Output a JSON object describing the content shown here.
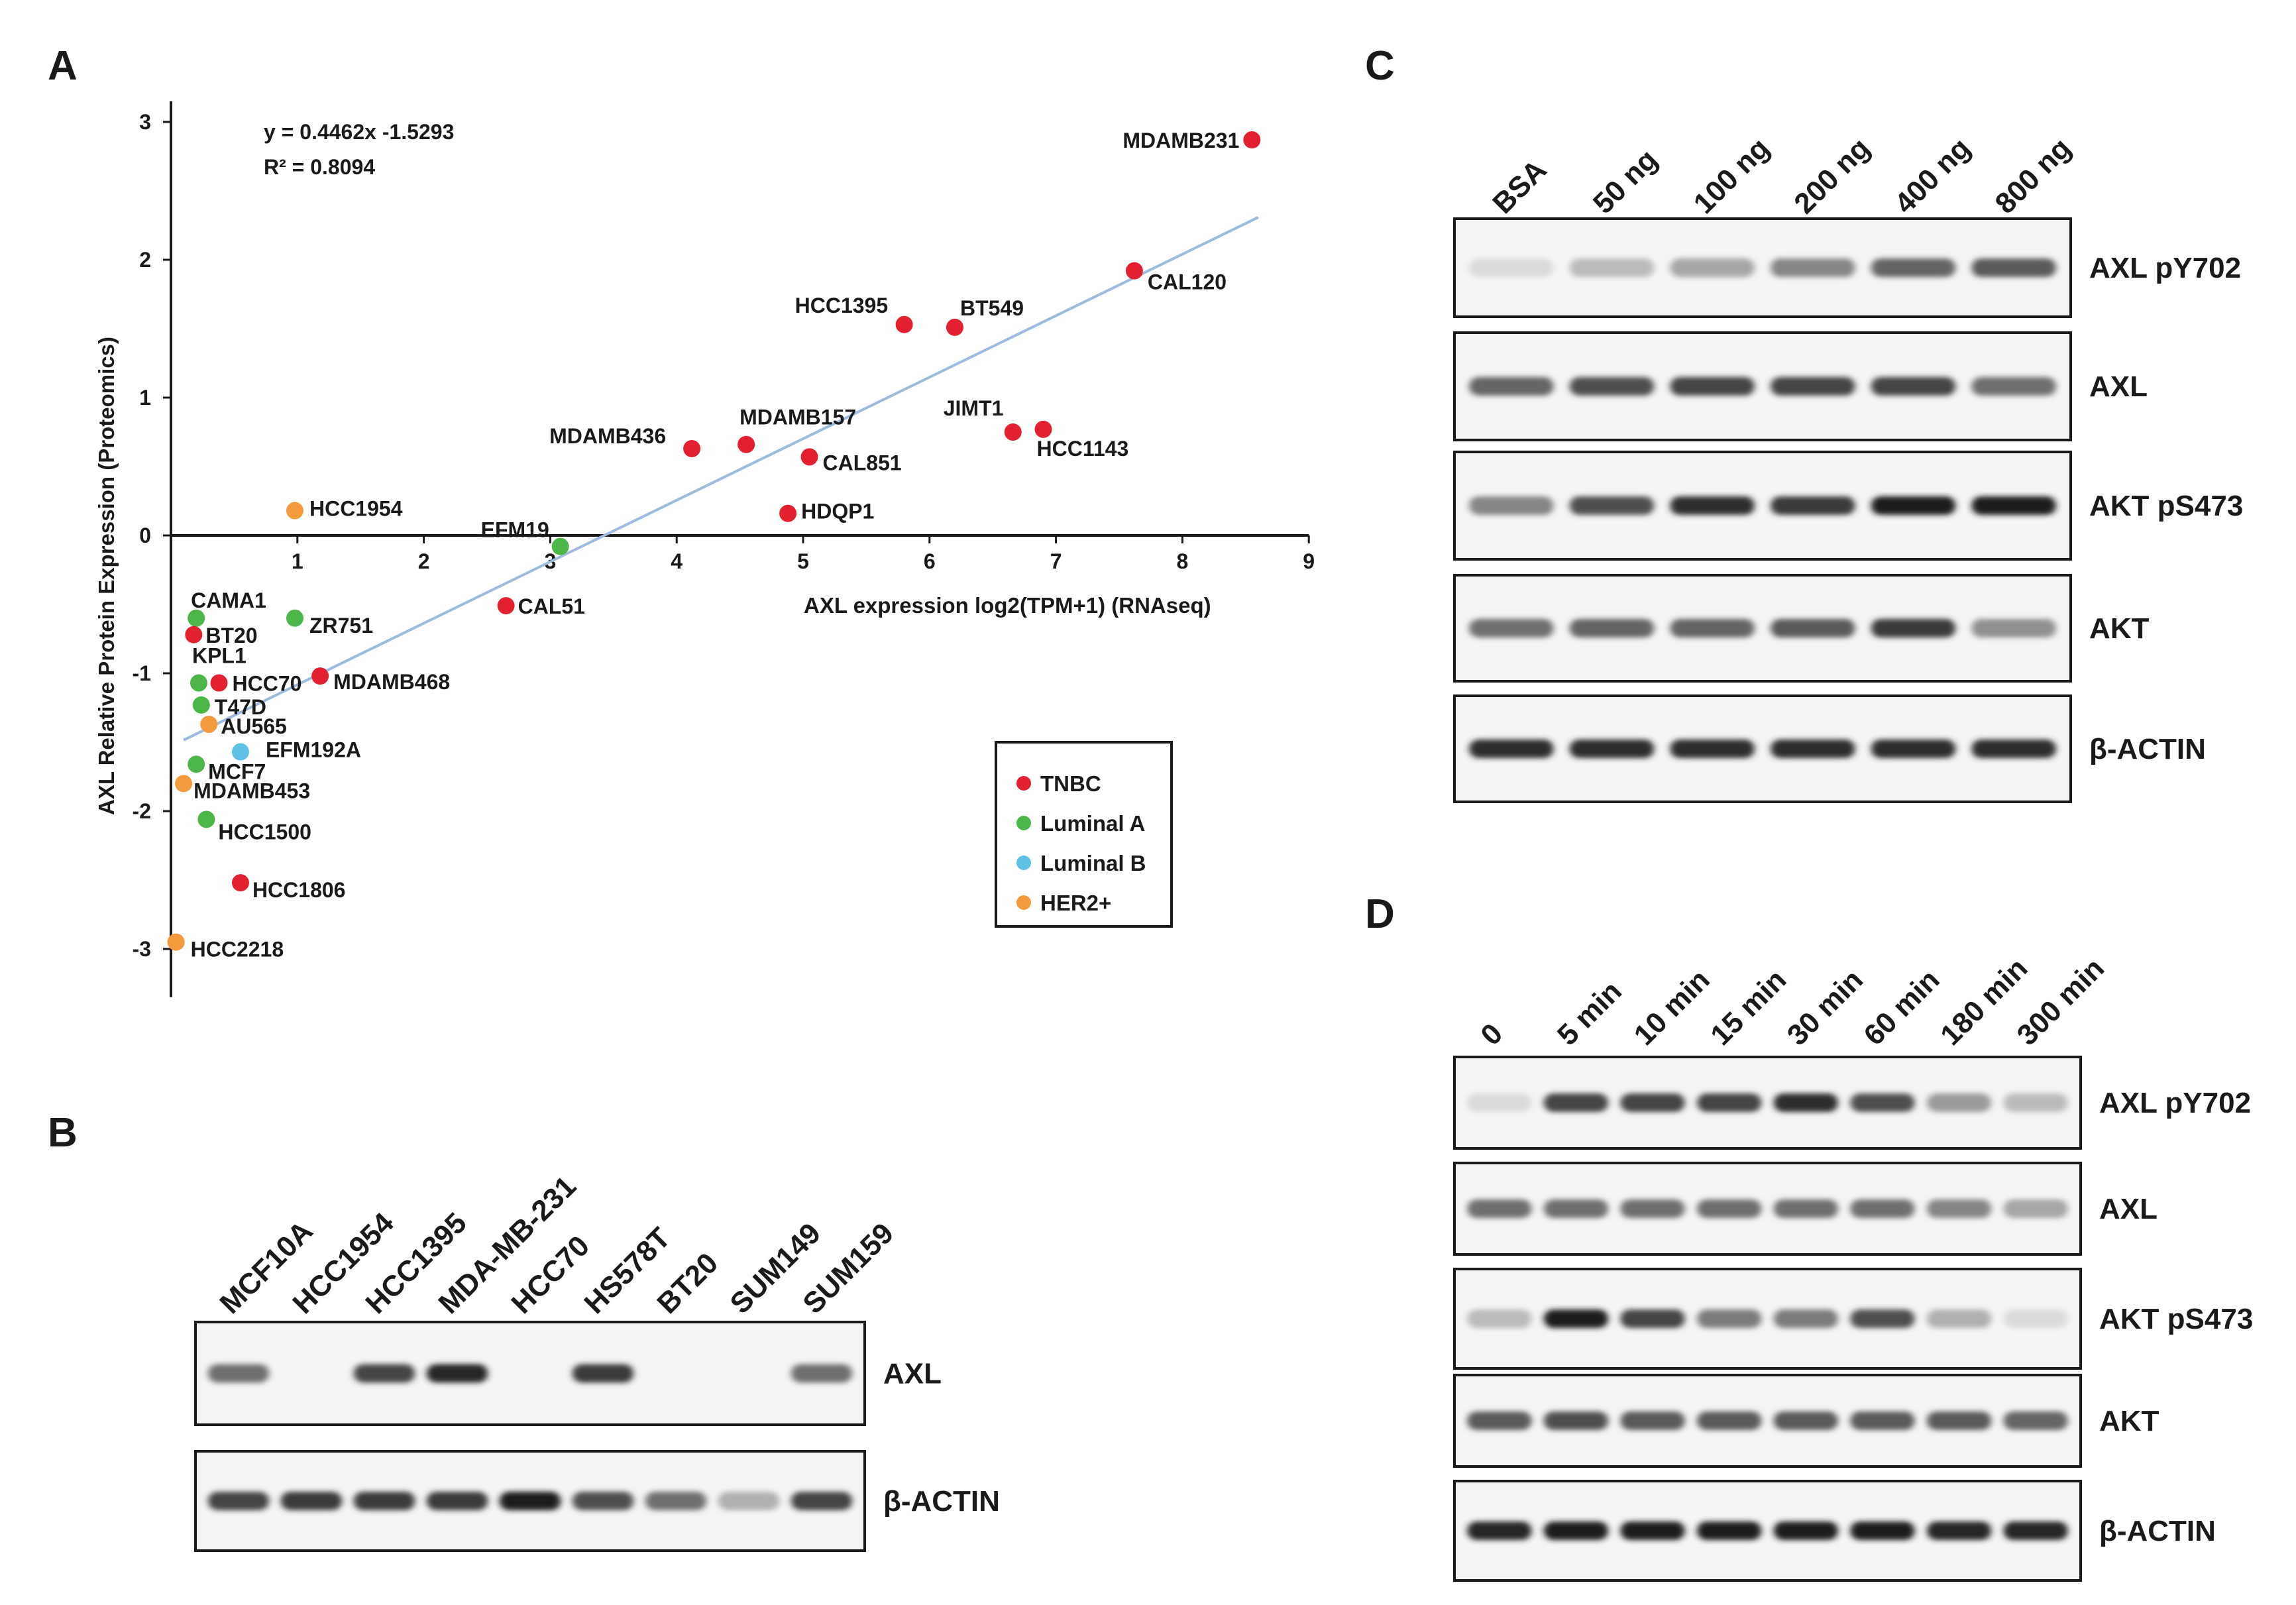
{
  "panels": {
    "a": "A",
    "b": "B",
    "c": "C",
    "d": "D"
  },
  "chart_data": {
    "type": "scatter",
    "xlabel": "AXL expression log2(TPM+1) (RNAseq)",
    "ylabel": "AXL Relative Protein Expression (Proteomics)",
    "xlim": [
      0,
      9
    ],
    "ylim": [
      -3,
      3
    ],
    "xticks": [
      "1",
      "2",
      "3",
      "4",
      "5",
      "6",
      "7",
      "8",
      "9"
    ],
    "yticks": [
      "3",
      "2",
      "1",
      "0",
      "-1",
      "-2",
      "-3"
    ],
    "equation": "y = 0.4462x  -1.5293",
    "r_squared": "R² = 0.8094",
    "trendline": {
      "slope": 0.4462,
      "intercept": -1.5293,
      "x_range": [
        0.1,
        8.6
      ]
    },
    "colors": {
      "TNBC": "#e2202f",
      "Luminal A": "#4cb648",
      "Luminal B": "#5dc2e6",
      "HER2+": "#f39a3c",
      "trendline": "#9dbcdd"
    },
    "legend": [
      "TNBC",
      "Luminal A",
      "Luminal B",
      "HER2+"
    ],
    "legend_position": "lower-right",
    "points": [
      {
        "name": "MDAMB231",
        "x": 8.55,
        "y": 2.87,
        "group": "TNBC"
      },
      {
        "name": "CAL120",
        "x": 7.62,
        "y": 1.92,
        "group": "TNBC"
      },
      {
        "name": "HCC1395",
        "x": 5.8,
        "y": 1.53,
        "group": "TNBC"
      },
      {
        "name": "BT549",
        "x": 6.2,
        "y": 1.51,
        "group": "TNBC"
      },
      {
        "name": "JIMT1",
        "x": 6.66,
        "y": 0.75,
        "group": "TNBC"
      },
      {
        "name": "HCC1143",
        "x": 6.9,
        "y": 0.77,
        "group": "TNBC"
      },
      {
        "name": "MDAMB436",
        "x": 4.12,
        "y": 0.63,
        "group": "TNBC"
      },
      {
        "name": "MDAMB157",
        "x": 4.55,
        "y": 0.66,
        "group": "TNBC"
      },
      {
        "name": "CAL851",
        "x": 5.05,
        "y": 0.57,
        "group": "TNBC"
      },
      {
        "name": "HDQP1",
        "x": 4.88,
        "y": 0.16,
        "group": "TNBC"
      },
      {
        "name": "HCC1954",
        "x": 0.98,
        "y": 0.18,
        "group": "HER2+"
      },
      {
        "name": "EFM19",
        "x": 3.08,
        "y": -0.08,
        "group": "Luminal A"
      },
      {
        "name": "CAL51",
        "x": 2.65,
        "y": -0.51,
        "group": "TNBC"
      },
      {
        "name": "CAMA1",
        "x": 0.2,
        "y": -0.6,
        "group": "Luminal A"
      },
      {
        "name": "ZR751",
        "x": 0.98,
        "y": -0.6,
        "group": "Luminal A"
      },
      {
        "name": "BT20",
        "x": 0.18,
        "y": -0.72,
        "group": "TNBC"
      },
      {
        "name": "KPL1",
        "x": 0.22,
        "y": -1.07,
        "group": "Luminal A"
      },
      {
        "name": "HCC70",
        "x": 0.38,
        "y": -1.07,
        "group": "TNBC"
      },
      {
        "name": "MDAMB468",
        "x": 1.18,
        "y": -1.02,
        "group": "TNBC"
      },
      {
        "name": "T47D",
        "x": 0.24,
        "y": -1.23,
        "group": "Luminal A"
      },
      {
        "name": "AU565",
        "x": 0.3,
        "y": -1.37,
        "group": "HER2+"
      },
      {
        "name": "EFM192A",
        "x": 0.55,
        "y": -1.57,
        "group": "Luminal B"
      },
      {
        "name": "MCF7",
        "x": 0.2,
        "y": -1.66,
        "group": "Luminal A"
      },
      {
        "name": "MDAMB453",
        "x": 0.1,
        "y": -1.8,
        "group": "HER2+"
      },
      {
        "name": "HCC1500",
        "x": 0.28,
        "y": -2.06,
        "group": "Luminal A"
      },
      {
        "name": "HCC1806",
        "x": 0.55,
        "y": -2.52,
        "group": "TNBC"
      },
      {
        "name": "HCC2218",
        "x": 0.04,
        "y": -2.95,
        "group": "HER2+"
      }
    ]
  },
  "blot_b": {
    "lanes": [
      "MCF10A",
      "HCC1954",
      "HCC1395",
      "MDA-MB-231",
      "HCC70",
      "HS578T",
      "BT20",
      "SUM149",
      "SUM159"
    ],
    "rows": [
      {
        "label": "AXL",
        "intensity": [
          0.55,
          0.0,
          0.75,
          0.9,
          0.0,
          0.8,
          0.0,
          0.0,
          0.55
        ]
      },
      {
        "label": "β-ACTIN",
        "intensity": [
          0.75,
          0.8,
          0.8,
          0.8,
          0.95,
          0.7,
          0.55,
          0.25,
          0.75
        ]
      }
    ]
  },
  "blot_c": {
    "lanes": [
      "BSA",
      "50 ng",
      "100 ng",
      "200 ng",
      "400 ng",
      "800 ng"
    ],
    "rows": [
      {
        "label": "AXL pY702",
        "intensity": [
          0.05,
          0.2,
          0.3,
          0.45,
          0.6,
          0.65
        ]
      },
      {
        "label": "AXL",
        "intensity": [
          0.6,
          0.7,
          0.75,
          0.75,
          0.75,
          0.55
        ]
      },
      {
        "label": "AKT pS473",
        "intensity": [
          0.45,
          0.7,
          0.85,
          0.8,
          0.95,
          0.95
        ]
      },
      {
        "label": "AKT",
        "intensity": [
          0.55,
          0.6,
          0.6,
          0.65,
          0.8,
          0.4
        ]
      },
      {
        "label": "β-ACTIN",
        "intensity": [
          0.85,
          0.85,
          0.85,
          0.85,
          0.85,
          0.85
        ]
      }
    ]
  },
  "blot_d": {
    "lanes": [
      "0",
      "5 min",
      "10 min",
      "15 min",
      "30 min",
      "60 min",
      "180 min",
      "300 min"
    ],
    "rows": [
      {
        "label": "AXL pY702",
        "intensity": [
          0.05,
          0.75,
          0.75,
          0.75,
          0.85,
          0.7,
          0.35,
          0.2
        ]
      },
      {
        "label": "AXL",
        "intensity": [
          0.55,
          0.55,
          0.55,
          0.55,
          0.55,
          0.55,
          0.45,
          0.3
        ]
      },
      {
        "label": "AKT pS473",
        "intensity": [
          0.2,
          0.95,
          0.75,
          0.5,
          0.5,
          0.7,
          0.25,
          0.05
        ]
      },
      {
        "label": "AKT",
        "intensity": [
          0.65,
          0.7,
          0.65,
          0.65,
          0.65,
          0.65,
          0.65,
          0.6
        ]
      },
      {
        "label": "β-ACTIN",
        "intensity": [
          0.9,
          0.95,
          0.95,
          0.95,
          0.95,
          0.95,
          0.9,
          0.9
        ]
      }
    ]
  }
}
